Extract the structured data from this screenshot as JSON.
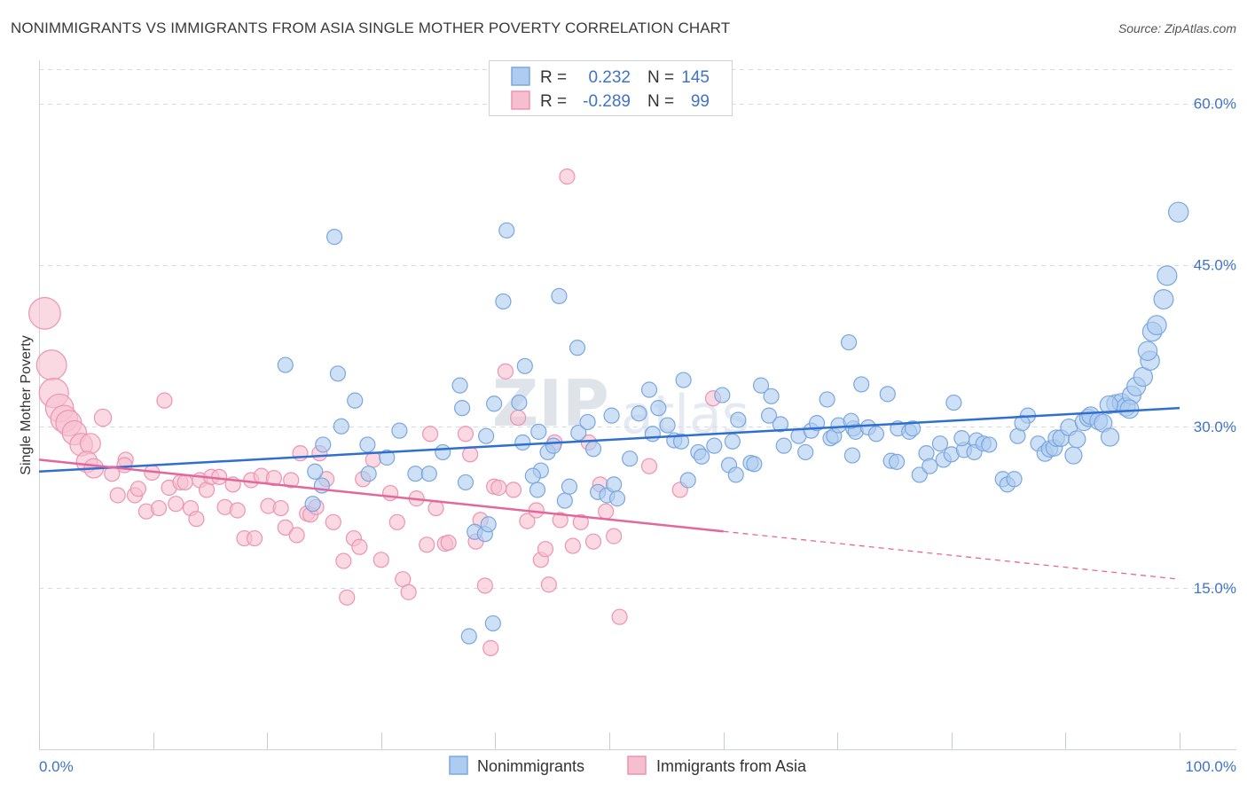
{
  "title": "NONIMMIGRANTS VS IMMIGRANTS FROM ASIA SINGLE MOTHER POVERTY CORRELATION CHART",
  "source": "Source: ZipAtlas.com",
  "watermark": {
    "part1": "ZIP",
    "part2": "atlas"
  },
  "colors": {
    "blue_fill": "#aecbf0",
    "blue_stroke": "#7aa7df",
    "blue_line": "#2f6fcf",
    "pink_fill": "#f6bfd0",
    "pink_stroke": "#ec94b1",
    "pink_line": "#e4679a",
    "grid": "#d6dbe3",
    "axis_text": "#3f73c6"
  },
  "stats": {
    "r_label": "R =",
    "n_label": "N =",
    "blue": {
      "r": "0.232",
      "n": "145"
    },
    "pink": {
      "r": "-0.289",
      "n": "99"
    }
  },
  "legend": {
    "nonimmigrants": "Nonimmigrants",
    "immigrants": "Immigrants from Asia"
  },
  "chart_data": {
    "type": "scatter",
    "ylabel": "Single Mother Poverty",
    "xlabel": "",
    "xlim": [
      0,
      100
    ],
    "ylim": [
      0,
      64
    ],
    "y_ticks": [
      {
        "v": 15,
        "label": "15.0%"
      },
      {
        "v": 30,
        "label": "30.0%"
      },
      {
        "v": 45,
        "label": "45.0%"
      },
      {
        "v": 60,
        "label": "60.0%"
      }
    ],
    "x_tick_labels": {
      "min": "0.0%",
      "max": "100.0%"
    },
    "x_ticks": [
      0,
      10,
      20,
      30,
      40,
      50,
      60,
      70,
      80,
      90,
      100
    ],
    "series": [
      {
        "name": "Nonimmigrants",
        "trend": {
          "x0": 0,
          "y0": 25.8,
          "x1": 100,
          "y1": 31.7,
          "solid_until": 100
        },
        "points": [
          [
            21.6,
            35.7
          ],
          [
            26.2,
            34.9
          ],
          [
            25.9,
            47.6
          ],
          [
            27.7,
            32.4
          ],
          [
            26.5,
            30.0
          ],
          [
            24.9,
            28.3
          ],
          [
            28.8,
            28.3
          ],
          [
            28.9,
            25.6
          ],
          [
            24.2,
            25.8
          ],
          [
            24.8,
            24.5
          ],
          [
            24.0,
            22.8
          ],
          [
            31.6,
            29.6
          ],
          [
            30.5,
            27.1
          ],
          [
            33.0,
            25.6
          ],
          [
            35.4,
            27.6
          ],
          [
            37.1,
            31.7
          ],
          [
            36.9,
            33.8
          ],
          [
            39.9,
            32.1
          ],
          [
            39.2,
            29.1
          ],
          [
            37.4,
            24.8
          ],
          [
            34.2,
            25.6
          ],
          [
            40.7,
            41.6
          ],
          [
            41.0,
            48.2
          ],
          [
            42.6,
            35.6
          ],
          [
            42.1,
            32.2
          ],
          [
            42.4,
            28.5
          ],
          [
            43.8,
            29.5
          ],
          [
            44.6,
            27.6
          ],
          [
            44.0,
            25.9
          ],
          [
            43.3,
            25.4
          ],
          [
            43.7,
            24.1
          ],
          [
            46.1,
            23.1
          ],
          [
            46.5,
            24.4
          ],
          [
            45.1,
            28.2
          ],
          [
            38.2,
            20.2
          ],
          [
            39.1,
            20.0
          ],
          [
            39.4,
            20.9
          ],
          [
            37.7,
            10.5
          ],
          [
            39.8,
            11.7
          ],
          [
            45.6,
            42.1
          ],
          [
            47.2,
            37.3
          ],
          [
            47.3,
            29.4
          ],
          [
            48.6,
            27.9
          ],
          [
            49.0,
            23.9
          ],
          [
            49.8,
            23.6
          ],
          [
            50.4,
            24.6
          ],
          [
            50.7,
            23.3
          ],
          [
            48.1,
            30.4
          ],
          [
            50.2,
            31.0
          ],
          [
            51.8,
            27.0
          ],
          [
            52.6,
            31.2
          ],
          [
            53.8,
            29.3
          ],
          [
            53.5,
            33.4
          ],
          [
            54.3,
            31.7
          ],
          [
            55.1,
            30.1
          ],
          [
            55.7,
            28.7
          ],
          [
            56.3,
            28.6
          ],
          [
            56.9,
            25.0
          ],
          [
            56.5,
            34.3
          ],
          [
            57.8,
            27.6
          ],
          [
            58.1,
            27.2
          ],
          [
            59.2,
            28.2
          ],
          [
            60.5,
            26.4
          ],
          [
            60.8,
            28.6
          ],
          [
            61.3,
            30.6
          ],
          [
            59.9,
            32.9
          ],
          [
            61.1,
            25.5
          ],
          [
            62.4,
            26.6
          ],
          [
            62.7,
            26.5
          ],
          [
            63.3,
            33.8
          ],
          [
            64.2,
            32.8
          ],
          [
            65.3,
            28.2
          ],
          [
            65.0,
            30.2
          ],
          [
            64.0,
            31.0
          ],
          [
            66.6,
            29.1
          ],
          [
            67.2,
            27.6
          ],
          [
            67.7,
            29.6
          ],
          [
            68.2,
            30.3
          ],
          [
            69.4,
            28.9
          ],
          [
            69.7,
            29.1
          ],
          [
            69.1,
            32.5
          ],
          [
            70.1,
            30.1
          ],
          [
            71.4,
            29.8
          ],
          [
            71.3,
            27.3
          ],
          [
            71.6,
            29.5
          ],
          [
            71.2,
            30.5
          ],
          [
            71.0,
            37.8
          ],
          [
            72.7,
            29.9
          ],
          [
            72.1,
            33.9
          ],
          [
            73.4,
            29.3
          ],
          [
            74.4,
            33.0
          ],
          [
            75.3,
            29.8
          ],
          [
            74.7,
            26.8
          ],
          [
            75.2,
            26.7
          ],
          [
            76.3,
            29.5
          ],
          [
            76.6,
            29.8
          ],
          [
            77.2,
            25.5
          ],
          [
            77.8,
            27.5
          ],
          [
            78.1,
            26.3
          ],
          [
            79.0,
            28.4
          ],
          [
            79.3,
            26.9
          ],
          [
            80.0,
            27.4
          ],
          [
            80.2,
            32.2
          ],
          [
            81.1,
            27.8
          ],
          [
            80.9,
            28.9
          ],
          [
            82.2,
            28.7
          ],
          [
            82.0,
            27.6
          ],
          [
            82.8,
            28.4
          ],
          [
            83.3,
            28.3
          ],
          [
            84.5,
            25.1
          ],
          [
            84.9,
            24.6
          ],
          [
            85.5,
            25.1
          ],
          [
            85.8,
            29.1
          ],
          [
            86.7,
            31.0
          ],
          [
            86.2,
            30.3
          ],
          [
            87.6,
            28.4
          ],
          [
            88.2,
            27.5
          ],
          [
            88.6,
            27.9
          ],
          [
            89.0,
            28.0
          ],
          [
            89.2,
            28.9
          ],
          [
            89.6,
            28.9
          ],
          [
            90.3,
            29.9
          ],
          [
            90.7,
            27.3
          ],
          [
            91.0,
            28.8
          ],
          [
            91.6,
            30.4
          ],
          [
            92.0,
            30.8
          ],
          [
            92.2,
            31.0
          ],
          [
            92.9,
            30.5
          ],
          [
            93.3,
            30.3
          ],
          [
            93.9,
            29.0
          ],
          [
            94.4,
            32.1
          ],
          [
            94.9,
            32.2
          ],
          [
            95.3,
            31.8
          ],
          [
            95.8,
            32.9
          ],
          [
            96.2,
            33.7
          ],
          [
            96.8,
            34.6
          ],
          [
            97.4,
            36.1
          ],
          [
            97.2,
            37.0
          ],
          [
            97.6,
            38.8
          ],
          [
            98.0,
            39.4
          ],
          [
            98.6,
            41.8
          ],
          [
            98.9,
            44.0
          ],
          [
            99.9,
            49.9
          ],
          [
            93.8,
            32.0
          ],
          [
            95.6,
            31.6
          ]
        ]
      },
      {
        "name": "Immigrants from Asia",
        "trend": {
          "x0": 0,
          "y0": 26.9,
          "x1": 100,
          "y1": 15.8,
          "solid_until": 60
        },
        "points": [
          [
            0.5,
            40.5
          ],
          [
            1.1,
            35.7
          ],
          [
            1.3,
            33.1
          ],
          [
            1.8,
            31.7
          ],
          [
            2.2,
            30.7
          ],
          [
            2.6,
            30.3
          ],
          [
            3.1,
            29.4
          ],
          [
            3.7,
            28.3
          ],
          [
            4.5,
            28.4
          ],
          [
            4.2,
            26.7
          ],
          [
            4.8,
            26.1
          ],
          [
            5.6,
            30.8
          ],
          [
            6.4,
            25.6
          ],
          [
            6.9,
            23.6
          ],
          [
            7.6,
            26.9
          ],
          [
            7.5,
            26.4
          ],
          [
            8.4,
            23.6
          ],
          [
            8.7,
            24.2
          ],
          [
            9.4,
            22.1
          ],
          [
            9.9,
            25.7
          ],
          [
            10.5,
            22.4
          ],
          [
            11.0,
            32.4
          ],
          [
            11.4,
            24.3
          ],
          [
            12.0,
            22.8
          ],
          [
            12.4,
            24.8
          ],
          [
            12.8,
            24.8
          ],
          [
            13.3,
            22.4
          ],
          [
            13.8,
            21.4
          ],
          [
            14.1,
            25.0
          ],
          [
            14.7,
            24.1
          ],
          [
            15.1,
            25.3
          ],
          [
            15.8,
            25.3
          ],
          [
            16.3,
            22.5
          ],
          [
            17.0,
            24.6
          ],
          [
            17.4,
            22.2
          ],
          [
            18.0,
            19.6
          ],
          [
            18.6,
            25.0
          ],
          [
            18.9,
            19.6
          ],
          [
            19.5,
            25.4
          ],
          [
            20.1,
            22.6
          ],
          [
            20.6,
            25.2
          ],
          [
            21.2,
            22.4
          ],
          [
            21.6,
            20.6
          ],
          [
            22.1,
            25.0
          ],
          [
            22.6,
            19.9
          ],
          [
            22.9,
            27.5
          ],
          [
            23.5,
            21.9
          ],
          [
            23.8,
            21.8
          ],
          [
            24.3,
            22.5
          ],
          [
            24.6,
            27.5
          ],
          [
            25.2,
            25.1
          ],
          [
            25.8,
            21.1
          ],
          [
            26.7,
            17.5
          ],
          [
            27.0,
            14.1
          ],
          [
            27.6,
            19.6
          ],
          [
            28.1,
            18.8
          ],
          [
            28.4,
            25.1
          ],
          [
            29.3,
            26.9
          ],
          [
            30.0,
            17.6
          ],
          [
            30.8,
            23.8
          ],
          [
            31.4,
            21.1
          ],
          [
            31.9,
            15.8
          ],
          [
            32.4,
            14.6
          ],
          [
            33.1,
            23.3
          ],
          [
            34.0,
            19.0
          ],
          [
            34.3,
            29.3
          ],
          [
            34.8,
            22.4
          ],
          [
            35.6,
            19.1
          ],
          [
            35.9,
            19.2
          ],
          [
            37.4,
            29.3
          ],
          [
            37.8,
            27.4
          ],
          [
            38.3,
            19.3
          ],
          [
            38.7,
            21.3
          ],
          [
            39.6,
            9.4
          ],
          [
            39.1,
            15.2
          ],
          [
            39.9,
            24.4
          ],
          [
            40.3,
            24.3
          ],
          [
            40.9,
            35.1
          ],
          [
            41.6,
            24.1
          ],
          [
            42.0,
            30.8
          ],
          [
            42.8,
            21.2
          ],
          [
            43.6,
            22.2
          ],
          [
            44.0,
            17.6
          ],
          [
            44.4,
            18.6
          ],
          [
            44.7,
            15.3
          ],
          [
            45.2,
            28.5
          ],
          [
            45.7,
            21.3
          ],
          [
            46.3,
            53.2
          ],
          [
            46.8,
            18.9
          ],
          [
            47.5,
            21.1
          ],
          [
            48.6,
            19.3
          ],
          [
            50.4,
            19.8
          ],
          [
            50.9,
            12.3
          ],
          [
            48.2,
            28.5
          ],
          [
            49.2,
            24.6
          ],
          [
            49.7,
            22.1
          ],
          [
            53.5,
            26.3
          ],
          [
            59.1,
            32.6
          ],
          [
            56.2,
            24.1
          ]
        ]
      }
    ]
  }
}
